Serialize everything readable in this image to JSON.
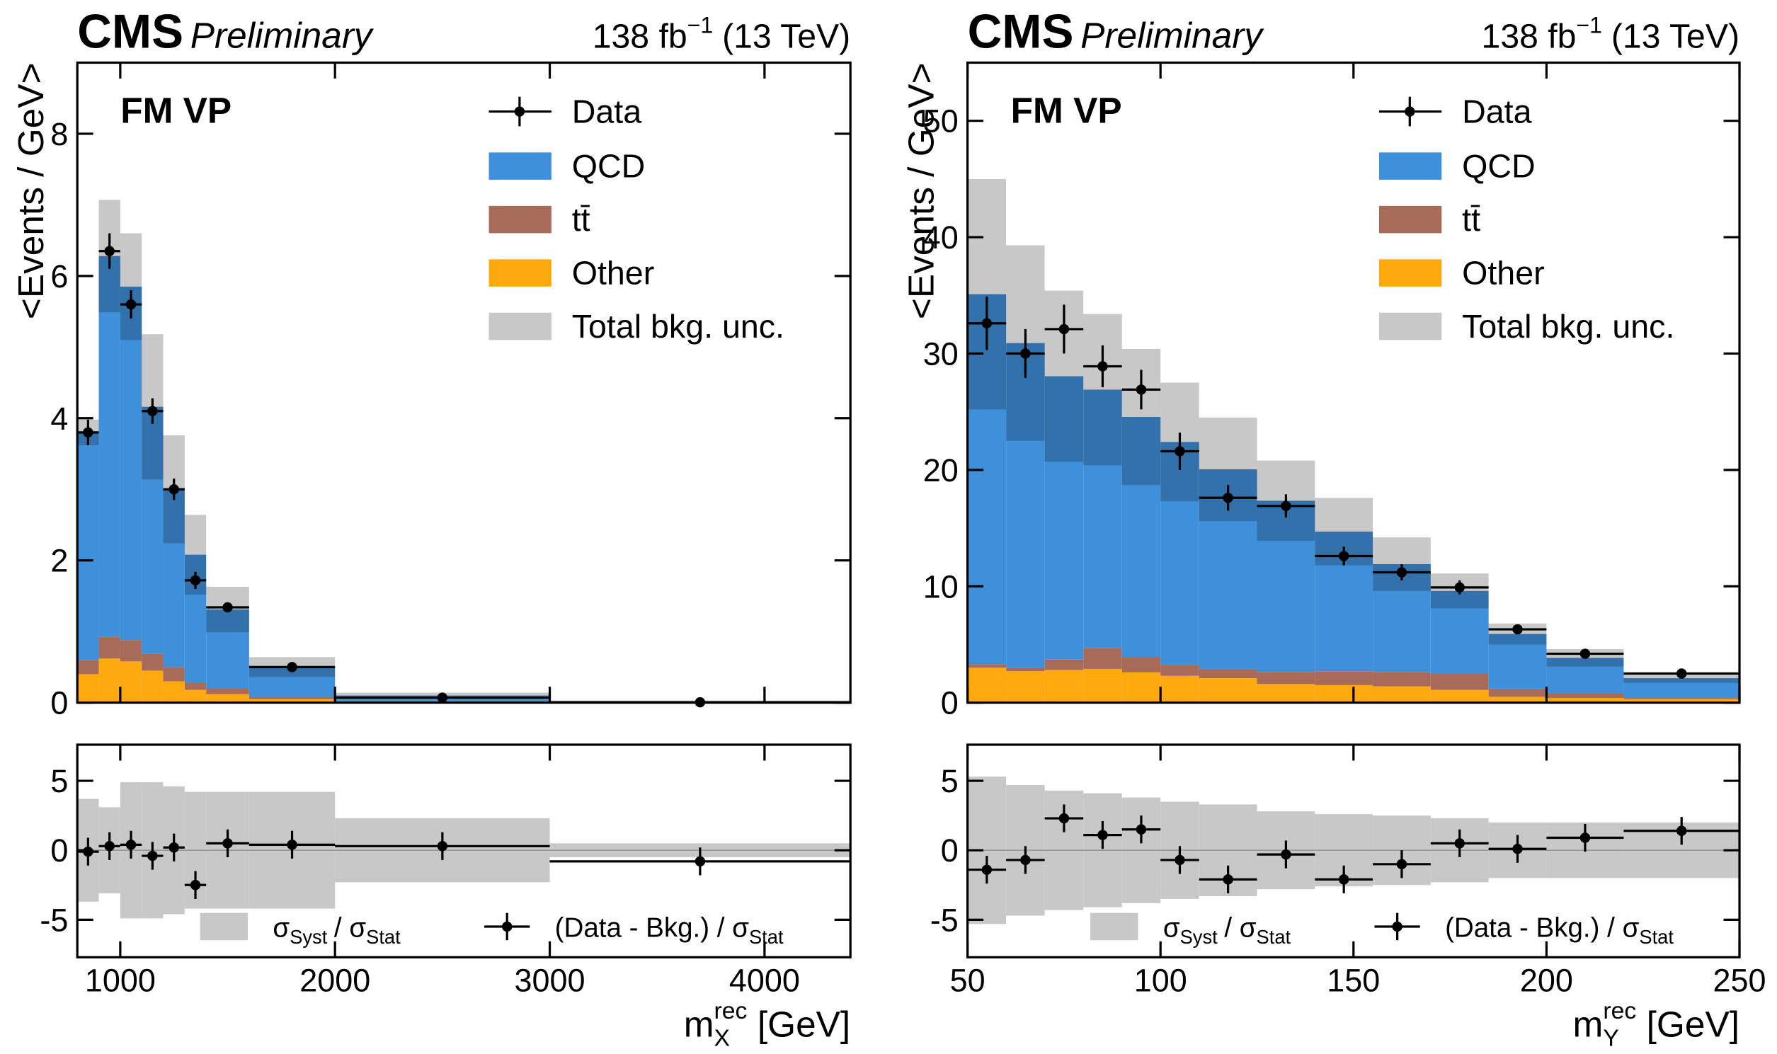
{
  "chart_data": [
    {
      "type": "histogram",
      "experiment": "CMS",
      "status": "Preliminary",
      "lumi": "138 fb",
      "lumi_exponent": "−1",
      "energy": "(13 TeV)",
      "label": "FM VP",
      "ylabel": "<Events / GeV>",
      "xlabel": "m",
      "xlabel_sup": "rec",
      "xlabel_sub": "X",
      "xlabel_unit": "[GeV]",
      "bins": [
        800,
        900,
        1000,
        1100,
        1200,
        1300,
        1400,
        1600,
        2000,
        3000,
        4400
      ],
      "xlim": [
        800,
        4400
      ],
      "xticks": [
        1000,
        2000,
        3000,
        4000
      ],
      "ylim": [
        0,
        9
      ],
      "yticks": [
        0,
        2,
        4,
        6,
        8
      ],
      "series": [
        {
          "name": "QCD",
          "color": "#3f90da",
          "values": [
            3.2,
            5.35,
            4.97,
            3.47,
            2.5,
            1.8,
            1.11,
            0.42,
            0.08,
            0.015
          ]
        },
        {
          "name": "tt̄",
          "color": "#a96b59",
          "values": [
            0.2,
            0.31,
            0.3,
            0.24,
            0.2,
            0.1,
            0.08,
            0.03,
            0.01,
            0.002
          ]
        },
        {
          "name": "Other",
          "color": "#ffa90e",
          "values": [
            0.4,
            0.62,
            0.58,
            0.45,
            0.3,
            0.18,
            0.12,
            0.05,
            0.01,
            0.003
          ]
        }
      ],
      "uncertainty": {
        "name": "Total bkg. unc.",
        "color": "#c8c8c8",
        "values": [
          0.18,
          0.79,
          0.75,
          1.02,
          0.76,
          0.56,
          0.32,
          0.14,
          0.04,
          0.01
        ]
      },
      "data": {
        "name": "Data",
        "color": "#000000",
        "values": [
          3.8,
          6.35,
          5.6,
          4.1,
          3.0,
          1.72,
          1.34,
          0.5,
          0.07,
          0.005
        ],
        "errors": [
          0.18,
          0.25,
          0.2,
          0.18,
          0.15,
          0.12,
          0.06,
          0.03,
          0.01,
          0.005
        ]
      },
      "pull": {
        "ylim": [
          -7.7,
          7.6
        ],
        "yticks": [
          -5,
          0,
          5
        ],
        "band": {
          "name": "σ",
          "name_sub": "Syst",
          "name_mid": "/ σ",
          "name_sub2": "Stat",
          "color": "#c8c8c8",
          "values": [
            3.7,
            3.1,
            4.9,
            4.9,
            4.6,
            4.2,
            4.2,
            4.2,
            2.3,
            0.5
          ]
        },
        "points": {
          "name": "(Data - Bkg.) / σ",
          "name_sub": "Stat",
          "values": [
            -0.1,
            0.3,
            0.4,
            -0.4,
            0.2,
            -2.5,
            0.5,
            0.4,
            0.3,
            -0.8
          ],
          "errors": [
            1,
            1,
            1,
            1,
            1,
            1,
            1,
            1,
            1,
            1
          ]
        }
      }
    },
    {
      "type": "histogram",
      "experiment": "CMS",
      "status": "Preliminary",
      "lumi": "138 fb",
      "lumi_exponent": "−1",
      "energy": "(13 TeV)",
      "label": "FM VP",
      "ylabel": "<Events / GeV>",
      "xlabel": "m",
      "xlabel_sup": "rec",
      "xlabel_sub": "Y",
      "xlabel_unit": "[GeV]",
      "bins": [
        50,
        60,
        70,
        80,
        90,
        100,
        110,
        125,
        140,
        155,
        170,
        185,
        200,
        220,
        250
      ],
      "xlim": [
        50,
        250
      ],
      "xticks": [
        50,
        100,
        150,
        200,
        250
      ],
      "ylim": [
        0,
        55
      ],
      "yticks": [
        0,
        10,
        20,
        30,
        40,
        50
      ],
      "series": [
        {
          "name": "QCD",
          "color": "#3f90da",
          "values": [
            31.8,
            27.9,
            24.35,
            22.2,
            20.65,
            19.2,
            17.15,
            14.75,
            12.0,
            9.3,
            7.1,
            4.7,
            3.05,
            1.7
          ]
        },
        {
          "name": "tt̄",
          "color": "#a96b59",
          "values": [
            0.3,
            0.3,
            0.9,
            1.8,
            1.3,
            0.9,
            0.8,
            1.0,
            1.2,
            1.2,
            1.4,
            0.7,
            0.4,
            0.1
          ]
        },
        {
          "name": "Other",
          "color": "#ffa90e",
          "values": [
            3.0,
            2.7,
            2.8,
            2.9,
            2.6,
            2.3,
            2.1,
            1.6,
            1.5,
            1.4,
            1.1,
            0.5,
            0.4,
            0.3
          ]
        }
      ],
      "uncertainty": {
        "name": "Total bkg. unc.",
        "color": "#c8c8c8",
        "values": [
          9.9,
          8.4,
          7.35,
          6.5,
          5.85,
          5.1,
          4.45,
          3.45,
          2.9,
          2.3,
          1.5,
          0.9,
          0.75,
          0.4
        ]
      },
      "data": {
        "name": "Data",
        "color": "#000000",
        "values": [
          32.6,
          30.0,
          32.1,
          28.9,
          26.9,
          21.6,
          17.6,
          16.9,
          12.6,
          11.2,
          9.9,
          6.3,
          4.2,
          2.5
        ],
        "errors": [
          2.3,
          2.1,
          2.1,
          1.8,
          1.7,
          1.6,
          1.1,
          1.0,
          0.8,
          0.7,
          0.6,
          0.4,
          0.3,
          0.2
        ]
      },
      "pull": {
        "ylim": [
          -7.7,
          7.6
        ],
        "yticks": [
          -5,
          0,
          5
        ],
        "band": {
          "name": "σ",
          "name_sub": "Syst",
          "name_mid": "/ σ",
          "name_sub2": "Stat",
          "color": "#c8c8c8",
          "values": [
            5.3,
            4.7,
            4.3,
            4.1,
            3.8,
            3.5,
            3.3,
            2.8,
            2.6,
            2.5,
            2.3,
            2.0,
            2.0,
            2.0
          ]
        },
        "points": {
          "name": "(Data - Bkg.) / σ",
          "name_sub": "Stat",
          "values": [
            -1.4,
            -0.7,
            2.3,
            1.1,
            1.5,
            -0.7,
            -2.1,
            -0.3,
            -2.1,
            -1.0,
            0.5,
            0.1,
            0.9,
            1.4
          ],
          "errors": [
            1,
            1,
            1,
            1,
            1,
            1,
            1,
            1,
            1,
            1,
            1,
            1,
            1,
            1
          ]
        }
      }
    }
  ]
}
